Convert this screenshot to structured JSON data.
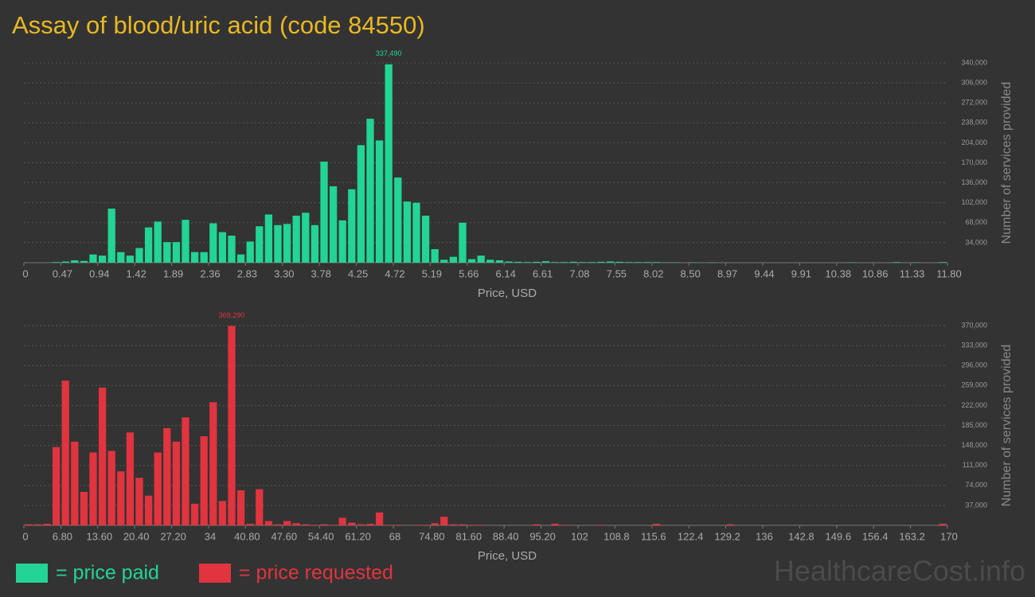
{
  "title": "Assay of blood/uric acid (code 84550)",
  "watermark": "HealthcareCost.info",
  "chart_data": [
    {
      "type": "histogram",
      "x_label": "Price, USD",
      "y_label": "Number of services provided",
      "annotation": "337,490",
      "bins": [
        0,
        0.118,
        0.236,
        0.354,
        0.472,
        0.59,
        0.708,
        0.826,
        0.944,
        1.062,
        1.18,
        1.298,
        1.416,
        1.534,
        1.652,
        1.77,
        1.888,
        2.006,
        2.124,
        2.242,
        2.36,
        2.478,
        2.596,
        2.714,
        2.832,
        2.95,
        3.068,
        3.186,
        3.304,
        3.422,
        3.54,
        3.658,
        3.776,
        3.894,
        4.012,
        4.13,
        4.248,
        4.366,
        4.484,
        4.602,
        4.72,
        4.838,
        4.956,
        5.074,
        5.192,
        5.31,
        5.428,
        5.546,
        5.664,
        5.782,
        5.9,
        6.018,
        6.136,
        6.254,
        6.372,
        6.49,
        6.608,
        6.726,
        6.844,
        6.962,
        7.08,
        7.198,
        7.316,
        7.434,
        7.552,
        7.67,
        7.788,
        7.906,
        8.024,
        8.142,
        8.26,
        8.378,
        8.496,
        8.614,
        8.732,
        8.85,
        8.968,
        9.086,
        9.204,
        9.322,
        9.44,
        9.558,
        9.676,
        9.794,
        9.912,
        10.03,
        10.148,
        10.266,
        10.384,
        10.502,
        10.62,
        10.738,
        10.856,
        10.974,
        11.092,
        11.21,
        11.328,
        11.446,
        11.564,
        11.682,
        11.8
      ],
      "series": [
        {
          "name": "= price paid",
          "color": "#22d495",
          "values": [
            0,
            0,
            0,
            1000,
            2000,
            4000,
            3000,
            14000,
            12000,
            92000,
            18000,
            12000,
            25000,
            60000,
            70000,
            35000,
            35000,
            73000,
            18000,
            18000,
            67000,
            52000,
            46000,
            14000,
            36000,
            62000,
            82000,
            64000,
            66000,
            80000,
            85000,
            64000,
            172000,
            130000,
            72000,
            125000,
            200000,
            245000,
            208000,
            337490,
            145000,
            104000,
            102000,
            80000,
            23000,
            5000,
            10000,
            68000,
            6000,
            12000,
            5000,
            4000,
            2000,
            1500,
            1000,
            1500,
            2500,
            1000,
            1000,
            1500,
            1000,
            1000,
            1500,
            2000,
            1500,
            1000,
            1000,
            1000,
            1000,
            500,
            500,
            0,
            500,
            0,
            500,
            0,
            0,
            0,
            0,
            0,
            0,
            0,
            0,
            0,
            0,
            0,
            0,
            0,
            0,
            500,
            0,
            0,
            0,
            0,
            1000,
            0,
            500,
            0,
            0,
            1000
          ]
        }
      ],
      "xlim": [
        0,
        11.8
      ],
      "xticks": [
        0,
        {
          "value": 0.472,
          "label": "0.47"
        },
        {
          "value": 0.944,
          "label": "0.94"
        },
        {
          "value": 1.416,
          "label": "1.42"
        },
        {
          "value": 1.888,
          "label": "1.89"
        },
        2.36,
        {
          "value": 2.832,
          "label": "2.83"
        },
        {
          "value": 3.304,
          "label": "3.30"
        },
        {
          "value": 3.776,
          "label": "3.78"
        },
        {
          "value": 4.248,
          "label": "4.25"
        },
        4.72,
        {
          "value": 5.192,
          "label": "5.19"
        },
        {
          "value": 5.664,
          "label": "5.66"
        },
        {
          "value": 6.136,
          "label": "6.14"
        },
        {
          "value": 6.608,
          "label": "6.61"
        },
        7.08,
        {
          "value": 7.552,
          "label": "7.55"
        },
        {
          "value": 8.024,
          "label": "8.02"
        },
        {
          "value": 8.496,
          "label": "8.50"
        },
        {
          "value": 8.968,
          "label": "8.97"
        },
        9.44,
        {
          "value": 9.912,
          "label": "9.91"
        },
        {
          "value": 10.384,
          "label": "10.38"
        },
        {
          "value": 10.856,
          "label": "10.86"
        },
        {
          "value": 11.328,
          "label": "11.33"
        },
        {
          "value": 11.8,
          "label": "11.80"
        }
      ],
      "ylim": [
        0,
        340000
      ],
      "yticks": [
        {
          "value": 34000,
          "label": "34,000"
        },
        {
          "value": 68000,
          "label": "68,000"
        },
        {
          "value": 102000,
          "label": "102,000"
        },
        {
          "value": 136000,
          "label": "136,000"
        },
        {
          "value": 170000,
          "label": "170,000"
        },
        {
          "value": 204000,
          "label": "204,000"
        },
        {
          "value": 238000,
          "label": "238,000"
        },
        {
          "value": 272000,
          "label": "272,000"
        },
        {
          "value": 306000,
          "label": "306,000"
        },
        {
          "value": 340000,
          "label": "340,000"
        }
      ],
      "grid": true
    },
    {
      "type": "histogram",
      "x_label": "Price, USD",
      "y_label": "Number of services provided",
      "annotation": "369,290",
      "bins": [
        0,
        1.7,
        3.4,
        5.1,
        6.8,
        8.5,
        10.2,
        11.9,
        13.6,
        15.3,
        17,
        18.7,
        20.4,
        22.1,
        23.8,
        25.5,
        27.2,
        28.9,
        30.6,
        32.3,
        34,
        35.7,
        37.4,
        39.1,
        40.8,
        42.5,
        44.2,
        45.9,
        47.6,
        49.3,
        51,
        52.7,
        54.4,
        56.1,
        57.8,
        59.5,
        61.2,
        62.9,
        64.6,
        66.3,
        68,
        69.7,
        71.4,
        73.1,
        74.8,
        76.5,
        78.2,
        79.9,
        81.6,
        83.3,
        85,
        86.7,
        88.4,
        90.1,
        91.8,
        93.5,
        95.2,
        96.9,
        98.6,
        100.3,
        102,
        103.7,
        105.4,
        107.1,
        108.8,
        110.5,
        112.2,
        113.9,
        115.6,
        117.3,
        119,
        120.7,
        122.4,
        124.1,
        125.8,
        127.5,
        129.2,
        130.9,
        132.6,
        134.3,
        136,
        137.7,
        139.4,
        141.1,
        142.8,
        144.5,
        146.2,
        147.9,
        149.6,
        151.3,
        153,
        154.7,
        156.4,
        158.1,
        159.8,
        161.5,
        163.2,
        164.9,
        166.6,
        168.3,
        170
      ],
      "series": [
        {
          "name": "= price requested",
          "color": "#e0343e",
          "values": [
            2000,
            2000,
            3000,
            145000,
            268000,
            155000,
            62000,
            135000,
            255000,
            138000,
            100000,
            172000,
            88000,
            55000,
            135000,
            180000,
            155000,
            200000,
            40000,
            165000,
            228000,
            45000,
            369290,
            65000,
            3000,
            67000,
            8000,
            2000,
            8000,
            4000,
            2000,
            1000,
            2000,
            1000,
            14000,
            5000,
            2000,
            3000,
            24000,
            1000,
            1000,
            0,
            1000,
            1000,
            4000,
            16000,
            2000,
            2000,
            1000,
            1000,
            0,
            0,
            0,
            0,
            0,
            2000,
            0,
            3000,
            1000,
            0,
            0,
            0,
            1000,
            0,
            0,
            0,
            0,
            0,
            3000,
            0,
            0,
            0,
            0,
            0,
            0,
            0,
            2000,
            0,
            0,
            0,
            0,
            0,
            0,
            0,
            0,
            0,
            0,
            0,
            0,
            0,
            0,
            0,
            0,
            0,
            0,
            0,
            0,
            0,
            0,
            3000
          ]
        }
      ],
      "xlim": [
        0,
        170
      ],
      "xticks": [
        0,
        {
          "value": 6.8,
          "label": "6.80"
        },
        {
          "value": 13.6,
          "label": "13.60"
        },
        {
          "value": 20.4,
          "label": "20.40"
        },
        {
          "value": 27.2,
          "label": "27.20"
        },
        34,
        {
          "value": 40.8,
          "label": "40.80"
        },
        {
          "value": 47.6,
          "label": "47.60"
        },
        {
          "value": 54.4,
          "label": "54.40"
        },
        {
          "value": 61.2,
          "label": "61.20"
        },
        68,
        {
          "value": 74.8,
          "label": "74.80"
        },
        {
          "value": 81.6,
          "label": "81.60"
        },
        {
          "value": 88.4,
          "label": "88.40"
        },
        {
          "value": 95.2,
          "label": "95.20"
        },
        102,
        108.8,
        115.6,
        122.4,
        129.2,
        136,
        142.8,
        149.6,
        156.4,
        163.2,
        170
      ],
      "ylim": [
        0,
        370000
      ],
      "yticks": [
        {
          "value": 37000,
          "label": "37,000"
        },
        {
          "value": 74000,
          "label": "74,000"
        },
        {
          "value": 111000,
          "label": "111,000"
        },
        {
          "value": 148000,
          "label": "148,000"
        },
        {
          "value": 185000,
          "label": "185,000"
        },
        {
          "value": 222000,
          "label": "222,000"
        },
        {
          "value": 259000,
          "label": "259,000"
        },
        {
          "value": 296000,
          "label": "296,000"
        },
        {
          "value": 333000,
          "label": "333,000"
        },
        {
          "value": 370000,
          "label": "370,000"
        }
      ],
      "grid": true
    }
  ]
}
